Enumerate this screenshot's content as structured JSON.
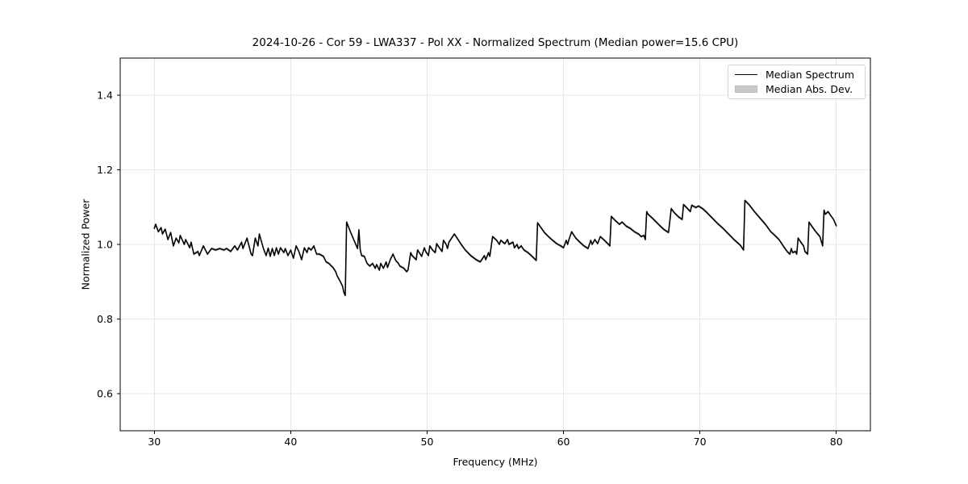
{
  "title": "2024-10-26 - Cor 59 - LWA337 - Pol XX - Normalized Spectrum (Median power=15.6 CPU)",
  "legend": {
    "items": [
      {
        "label": "Median Spectrum",
        "swatch": "line",
        "color": "#000000"
      },
      {
        "label": "Median Abs. Dev.",
        "swatch": "patch",
        "color": "#c9c9c9"
      }
    ]
  },
  "colors": {
    "line": "#000000",
    "band": "#c9c9c9",
    "grid": "#e7e7e7",
    "frame": "#000000",
    "background": "#ffffff"
  },
  "chart_data": {
    "type": "line",
    "title": "2024-10-26 - Cor 59 - LWA337 - Pol XX - Normalized Spectrum (Median power=15.6 CPU)",
    "xlabel": "Frequency (MHz)",
    "ylabel": "Normalized Power",
    "xlim": [
      27.5,
      82.5
    ],
    "ylim": [
      0.5,
      1.5
    ],
    "xticks": [
      30,
      40,
      50,
      60,
      70,
      80
    ],
    "yticks": [
      0.6,
      0.8,
      1.0,
      1.2,
      1.4
    ],
    "grid": true,
    "legend_position": "upper right",
    "series": [
      {
        "name": "Median Spectrum",
        "type": "line",
        "color": "#000000",
        "points": [
          [
            30.0,
            1.043
          ],
          [
            30.1,
            1.054
          ],
          [
            30.3,
            1.034
          ],
          [
            30.5,
            1.045
          ],
          [
            30.6,
            1.028
          ],
          [
            30.8,
            1.041
          ],
          [
            31.0,
            1.013
          ],
          [
            31.2,
            1.032
          ],
          [
            31.4,
            0.996
          ],
          [
            31.6,
            1.017
          ],
          [
            31.8,
            1.004
          ],
          [
            31.9,
            1.024
          ],
          [
            32.2,
            1.0
          ],
          [
            32.3,
            1.013
          ],
          [
            32.6,
            0.991
          ],
          [
            32.7,
            1.006
          ],
          [
            32.9,
            0.974
          ],
          [
            33.2,
            0.981
          ],
          [
            33.3,
            0.97
          ],
          [
            33.6,
            0.996
          ],
          [
            33.9,
            0.974
          ],
          [
            34.2,
            0.989
          ],
          [
            34.5,
            0.985
          ],
          [
            34.8,
            0.989
          ],
          [
            35.1,
            0.985
          ],
          [
            35.3,
            0.989
          ],
          [
            35.6,
            0.981
          ],
          [
            35.9,
            0.996
          ],
          [
            36.1,
            0.985
          ],
          [
            36.4,
            1.006
          ],
          [
            36.5,
            0.989
          ],
          [
            36.8,
            1.017
          ],
          [
            36.9,
            1.002
          ],
          [
            37.1,
            0.974
          ],
          [
            37.2,
            0.97
          ],
          [
            37.4,
            1.017
          ],
          [
            37.6,
            0.996
          ],
          [
            37.7,
            1.028
          ],
          [
            38.0,
            0.989
          ],
          [
            38.2,
            0.97
          ],
          [
            38.35,
            0.99
          ],
          [
            38.5,
            0.968
          ],
          [
            38.65,
            0.989
          ],
          [
            38.8,
            0.97
          ],
          [
            38.95,
            0.991
          ],
          [
            39.1,
            0.974
          ],
          [
            39.25,
            0.991
          ],
          [
            39.5,
            0.978
          ],
          [
            39.6,
            0.989
          ],
          [
            39.8,
            0.97
          ],
          [
            40.0,
            0.985
          ],
          [
            40.2,
            0.963
          ],
          [
            40.4,
            0.996
          ],
          [
            40.6,
            0.981
          ],
          [
            40.8,
            0.959
          ],
          [
            41.0,
            0.991
          ],
          [
            41.2,
            0.978
          ],
          [
            41.3,
            0.991
          ],
          [
            41.5,
            0.985
          ],
          [
            41.7,
            0.996
          ],
          [
            41.9,
            0.974
          ],
          [
            42.1,
            0.974
          ],
          [
            42.3,
            0.97
          ],
          [
            42.4,
            0.968
          ],
          [
            42.6,
            0.953
          ],
          [
            42.8,
            0.949
          ],
          [
            43.1,
            0.938
          ],
          [
            43.3,
            0.927
          ],
          [
            43.4,
            0.916
          ],
          [
            43.6,
            0.903
          ],
          [
            43.8,
            0.888
          ],
          [
            43.9,
            0.871
          ],
          [
            44.0,
            0.863
          ],
          [
            44.1,
            1.06
          ],
          [
            44.4,
            1.032
          ],
          [
            44.7,
            1.006
          ],
          [
            44.9,
            0.989
          ],
          [
            45.0,
            1.039
          ],
          [
            45.1,
            0.985
          ],
          [
            45.2,
            0.97
          ],
          [
            45.4,
            0.968
          ],
          [
            45.6,
            0.949
          ],
          [
            45.8,
            0.942
          ],
          [
            46.0,
            0.949
          ],
          [
            46.2,
            0.936
          ],
          [
            46.3,
            0.946
          ],
          [
            46.5,
            0.931
          ],
          [
            46.6,
            0.949
          ],
          [
            46.8,
            0.936
          ],
          [
            47.0,
            0.953
          ],
          [
            47.1,
            0.938
          ],
          [
            47.3,
            0.959
          ],
          [
            47.5,
            0.974
          ],
          [
            47.7,
            0.957
          ],
          [
            47.9,
            0.949
          ],
          [
            48.0,
            0.942
          ],
          [
            48.3,
            0.936
          ],
          [
            48.5,
            0.927
          ],
          [
            48.6,
            0.931
          ],
          [
            48.8,
            0.978
          ],
          [
            48.9,
            0.97
          ],
          [
            49.2,
            0.959
          ],
          [
            49.3,
            0.985
          ],
          [
            49.5,
            0.974
          ],
          [
            49.6,
            0.968
          ],
          [
            49.8,
            0.991
          ],
          [
            49.9,
            0.981
          ],
          [
            50.1,
            0.97
          ],
          [
            50.2,
            0.996
          ],
          [
            50.4,
            0.985
          ],
          [
            50.6,
            0.978
          ],
          [
            50.7,
            1.002
          ],
          [
            50.9,
            0.991
          ],
          [
            51.1,
            0.981
          ],
          [
            51.2,
            1.011
          ],
          [
            51.4,
            1.0
          ],
          [
            51.5,
            0.989
          ],
          [
            51.6,
            1.006
          ],
          [
            51.8,
            1.017
          ],
          [
            52.0,
            1.028
          ],
          [
            52.2,
            1.017
          ],
          [
            52.5,
            1.0
          ],
          [
            52.8,
            0.985
          ],
          [
            53.2,
            0.97
          ],
          [
            53.6,
            0.959
          ],
          [
            53.7,
            0.957
          ],
          [
            53.9,
            0.953
          ],
          [
            54.2,
            0.97
          ],
          [
            54.3,
            0.959
          ],
          [
            54.5,
            0.978
          ],
          [
            54.6,
            0.968
          ],
          [
            54.8,
            1.021
          ],
          [
            55.1,
            1.011
          ],
          [
            55.3,
            1.0
          ],
          [
            55.4,
            1.011
          ],
          [
            55.7,
            1.002
          ],
          [
            55.9,
            1.013
          ],
          [
            56.0,
            1.0
          ],
          [
            56.3,
            1.006
          ],
          [
            56.4,
            0.991
          ],
          [
            56.6,
            1.0
          ],
          [
            56.7,
            0.989
          ],
          [
            56.9,
            0.996
          ],
          [
            57.1,
            0.985
          ],
          [
            57.4,
            0.978
          ],
          [
            57.7,
            0.968
          ],
          [
            58.0,
            0.957
          ],
          [
            58.1,
            1.058
          ],
          [
            58.6,
            1.032
          ],
          [
            58.9,
            1.021
          ],
          [
            59.2,
            1.011
          ],
          [
            59.5,
            1.002
          ],
          [
            59.8,
            0.996
          ],
          [
            60.0,
            0.991
          ],
          [
            60.2,
            1.011
          ],
          [
            60.3,
            1.0
          ],
          [
            60.4,
            1.013
          ],
          [
            60.6,
            1.034
          ],
          [
            60.9,
            1.017
          ],
          [
            61.2,
            1.006
          ],
          [
            61.5,
            0.996
          ],
          [
            61.8,
            0.989
          ],
          [
            62.0,
            1.011
          ],
          [
            62.1,
            1.0
          ],
          [
            62.3,
            1.013
          ],
          [
            62.5,
            1.002
          ],
          [
            62.7,
            1.021
          ],
          [
            63.0,
            1.011
          ],
          [
            63.3,
            1.0
          ],
          [
            63.4,
            0.996
          ],
          [
            63.5,
            1.075
          ],
          [
            63.8,
            1.064
          ],
          [
            64.1,
            1.054
          ],
          [
            64.3,
            1.06
          ],
          [
            64.6,
            1.049
          ],
          [
            64.9,
            1.043
          ],
          [
            65.2,
            1.034
          ],
          [
            65.5,
            1.028
          ],
          [
            65.7,
            1.021
          ],
          [
            65.9,
            1.024
          ],
          [
            66.0,
            1.013
          ],
          [
            66.1,
            1.088
          ],
          [
            66.2,
            1.081
          ],
          [
            66.5,
            1.071
          ],
          [
            66.8,
            1.06
          ],
          [
            67.1,
            1.049
          ],
          [
            67.4,
            1.039
          ],
          [
            67.7,
            1.032
          ],
          [
            67.9,
            1.096
          ],
          [
            68.1,
            1.086
          ],
          [
            68.4,
            1.075
          ],
          [
            68.7,
            1.067
          ],
          [
            68.8,
            1.107
          ],
          [
            69.1,
            1.096
          ],
          [
            69.3,
            1.088
          ],
          [
            69.4,
            1.105
          ],
          [
            69.7,
            1.099
          ],
          [
            69.9,
            1.103
          ],
          [
            70.2,
            1.096
          ],
          [
            70.5,
            1.086
          ],
          [
            70.9,
            1.071
          ],
          [
            71.3,
            1.056
          ],
          [
            71.7,
            1.043
          ],
          [
            72.1,
            1.028
          ],
          [
            72.5,
            1.013
          ],
          [
            72.9,
            1.0
          ],
          [
            73.0,
            0.996
          ],
          [
            73.2,
            0.985
          ],
          [
            73.3,
            1.118
          ],
          [
            73.6,
            1.107
          ],
          [
            74.0,
            1.088
          ],
          [
            74.4,
            1.071
          ],
          [
            74.8,
            1.054
          ],
          [
            75.2,
            1.034
          ],
          [
            75.5,
            1.024
          ],
          [
            75.8,
            1.013
          ],
          [
            76.0,
            1.002
          ],
          [
            76.2,
            0.991
          ],
          [
            76.4,
            0.981
          ],
          [
            76.6,
            0.974
          ],
          [
            76.7,
            0.989
          ],
          [
            76.8,
            0.978
          ],
          [
            77.0,
            0.981
          ],
          [
            77.1,
            0.974
          ],
          [
            77.2,
            1.017
          ],
          [
            77.4,
            1.006
          ],
          [
            77.6,
            0.996
          ],
          [
            77.7,
            0.981
          ],
          [
            77.9,
            0.974
          ],
          [
            78.0,
            1.06
          ],
          [
            78.2,
            1.049
          ],
          [
            78.5,
            1.034
          ],
          [
            78.8,
            1.021
          ],
          [
            79.0,
            0.996
          ],
          [
            79.1,
            1.092
          ],
          [
            79.2,
            1.081
          ],
          [
            79.4,
            1.088
          ],
          [
            79.6,
            1.077
          ],
          [
            79.8,
            1.067
          ],
          [
            80.0,
            1.05
          ]
        ]
      },
      {
        "name": "Median Abs. Dev.",
        "type": "band",
        "color": "#c9c9c9",
        "deviation": 0.004
      }
    ]
  }
}
